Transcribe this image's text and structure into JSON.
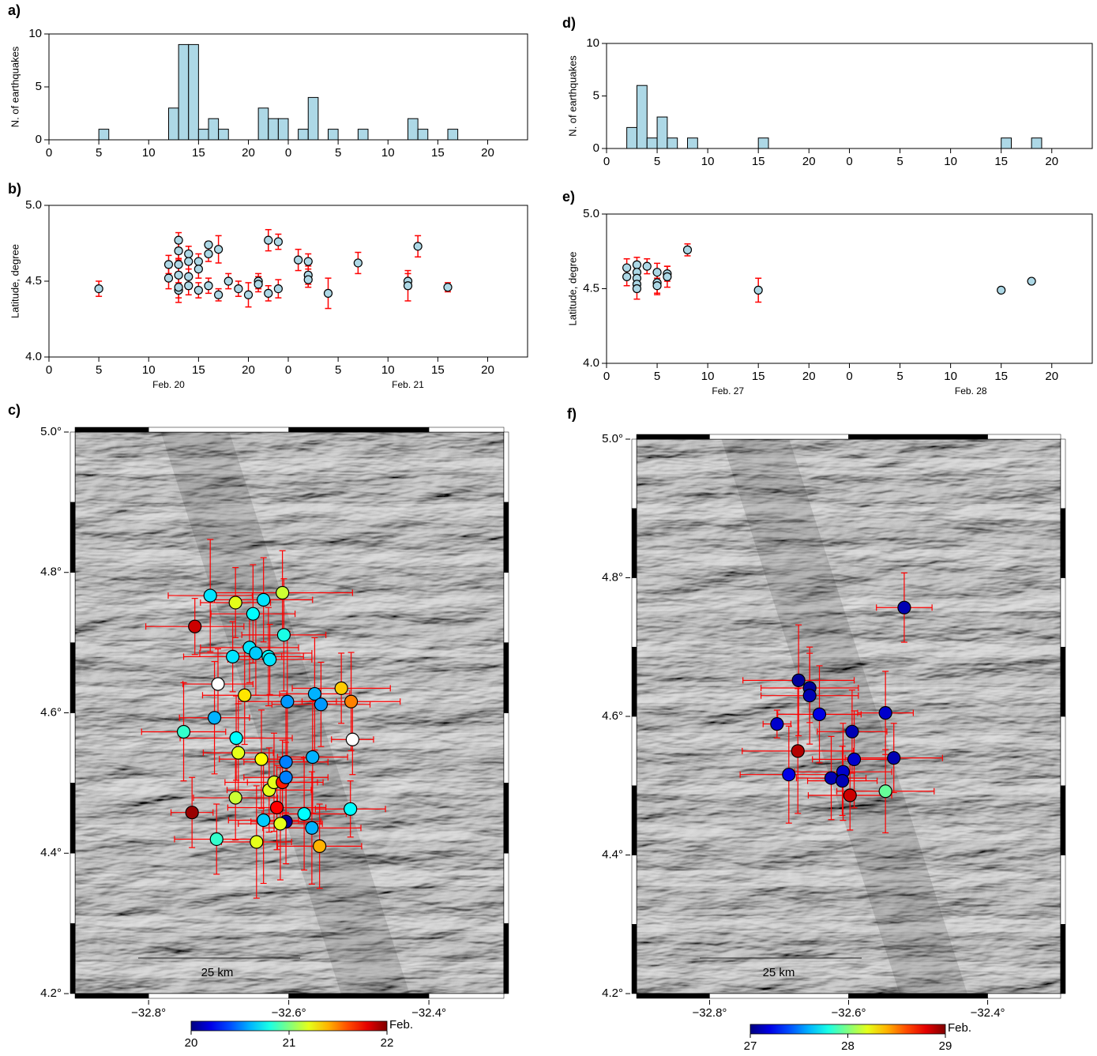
{
  "chart_data": [
    {
      "type": "histogram",
      "panel": "a)",
      "ylabel": "N. of earthquakes",
      "bins": [
        0,
        1,
        2,
        3,
        4,
        5,
        6,
        7,
        8,
        9,
        10,
        11,
        12,
        13,
        14,
        15,
        16,
        17,
        18,
        19,
        20,
        21,
        22,
        23,
        24,
        25,
        26,
        27,
        28,
        29,
        30,
        31,
        32,
        33,
        34,
        35,
        36,
        37,
        38,
        39,
        40,
        41,
        42,
        43,
        44,
        45,
        46,
        47,
        48
      ],
      "counts": [
        0,
        0,
        0,
        0,
        0,
        1,
        0,
        0,
        0,
        0,
        0,
        0,
        3,
        9,
        9,
        1,
        2,
        1,
        0,
        0,
        0,
        3,
        2,
        2,
        0,
        1,
        4,
        0,
        1,
        0,
        0,
        1,
        0,
        0,
        0,
        0,
        2,
        1,
        0,
        0,
        1,
        0,
        0,
        0,
        0,
        0,
        0,
        0
      ],
      "color": "#add8e6",
      "xlim": [
        0,
        48
      ],
      "xticks": [
        0,
        5,
        10,
        15,
        20,
        {
          "value": 24,
          "label": "0"
        },
        {
          "value": 29,
          "label": "5"
        },
        {
          "value": 34,
          "label": "10"
        },
        {
          "value": 39,
          "label": "15"
        },
        {
          "value": 44,
          "label": "20"
        }
      ],
      "ylim": [
        0,
        10
      ],
      "yticks": [
        0,
        5,
        10
      ]
    },
    {
      "type": "scatter",
      "panel": "b)",
      "ylabel": "Latitude, degree",
      "x": [
        5,
        12,
        12,
        13,
        13,
        13,
        13,
        13,
        13,
        14,
        14,
        14,
        14,
        15,
        15,
        15,
        16,
        16,
        16,
        17,
        17,
        18,
        19,
        20,
        21,
        21,
        22,
        22,
        23,
        23,
        25,
        26,
        26,
        26,
        28,
        31,
        36,
        36,
        37,
        40
      ],
      "y": [
        4.45,
        4.61,
        4.52,
        4.77,
        4.7,
        4.61,
        4.54,
        4.44,
        4.46,
        4.68,
        4.63,
        4.53,
        4.47,
        4.63,
        4.58,
        4.44,
        4.74,
        4.68,
        4.47,
        4.71,
        4.41,
        4.5,
        4.45,
        4.41,
        4.5,
        4.48,
        4.77,
        4.42,
        4.76,
        4.45,
        4.64,
        4.63,
        4.54,
        4.51,
        4.42,
        4.62,
        4.5,
        4.47,
        4.73,
        4.46
      ],
      "y_err": [
        0.05,
        0.06,
        0.07,
        0.05,
        0.05,
        0.07,
        0.1,
        0.05,
        0.1,
        0.05,
        0.05,
        0.08,
        0.06,
        0.05,
        0.06,
        0.05,
        0.02,
        0.05,
        0.05,
        0.09,
        0.04,
        0.05,
        0.05,
        0.08,
        0.05,
        0.05,
        0.07,
        0.05,
        0.05,
        0.06,
        0.07,
        0.05,
        0.06,
        0.05,
        0.1,
        0.07,
        0.05,
        0.1,
        0.07,
        0.03
      ],
      "color": "#add8e6",
      "error_color": "#ff0000",
      "xlim": [
        0,
        48
      ],
      "xticks": [
        0,
        5,
        10,
        15,
        20,
        {
          "value": 24,
          "label": "0"
        },
        {
          "value": 29,
          "label": "5"
        },
        {
          "value": 34,
          "label": "10"
        },
        {
          "value": 39,
          "label": "15"
        },
        {
          "value": 44,
          "label": "20"
        }
      ],
      "ylim": [
        4.0,
        5.0
      ],
      "yticks": [
        {
          "value": 4.0,
          "label": "4.0"
        },
        4.5,
        {
          "value": 5.0,
          "label": "5.0"
        }
      ],
      "day_labels": [
        "Feb. 20",
        "Feb. 21"
      ]
    },
    {
      "type": "map",
      "panel": "c)",
      "x": [
        -32.712,
        -32.734,
        -32.676,
        -32.636,
        -32.609,
        -32.651,
        -32.607,
        -32.656,
        -32.647,
        -32.629,
        -32.627,
        -32.68,
        -32.701,
        -32.663,
        -32.602,
        -32.563,
        -32.554,
        -32.525,
        -32.511,
        -32.706,
        -32.75,
        -32.675,
        -32.509,
        -32.672,
        -32.639,
        -32.604,
        -32.566,
        -32.628,
        -32.621,
        -32.609,
        -32.604,
        -32.676,
        -32.738,
        -32.617,
        -32.578,
        -32.512,
        -32.636,
        -32.604,
        -32.612,
        -32.567,
        -32.703,
        -32.646,
        -32.556
      ],
      "y": [
        4.767,
        4.723,
        4.757,
        4.761,
        4.771,
        4.741,
        4.711,
        4.693,
        4.685,
        4.68,
        4.676,
        4.68,
        4.641,
        4.625,
        4.616,
        4.627,
        4.612,
        4.635,
        4.616,
        4.593,
        4.573,
        4.564,
        4.562,
        4.543,
        4.534,
        4.53,
        4.537,
        4.49,
        4.501,
        4.501,
        4.508,
        4.479,
        4.458,
        4.465,
        4.456,
        4.463,
        4.447,
        4.445,
        4.442,
        4.436,
        4.42,
        4.416,
        4.41
      ],
      "color_values": [
        20.7,
        21.85,
        21.2,
        20.7,
        21.15,
        20.75,
        20.8,
        20.7,
        20.65,
        20.75,
        20.7,
        20.7,
        22.3,
        21.3,
        20.55,
        20.6,
        20.55,
        21.35,
        21.5,
        20.6,
        20.85,
        20.75,
        22.3,
        21.2,
        21.25,
        20.5,
        20.6,
        21.2,
        21.2,
        21.7,
        20.5,
        21.15,
        21.95,
        21.75,
        20.75,
        20.75,
        20.65,
        20.05,
        21.2,
        20.6,
        20.85,
        21.2,
        21.4
      ],
      "x_err": [
        0.06,
        0.07,
        0.05,
        0.07,
        0.1,
        0.06,
        0.06,
        0.07,
        0.08,
        0.05,
        0.06,
        0.07,
        0.05,
        0.06,
        0.07,
        0.05,
        0.07,
        0.07,
        0.07,
        0.05,
        0.06,
        0.08,
        0.03,
        0.05,
        0.06,
        0.06,
        0.05,
        0.06,
        0.07,
        0.05,
        0.06,
        0.06,
        0.03,
        0.07,
        0.06,
        0.05,
        0.05,
        0.05,
        0.06,
        0.07,
        0.06,
        0.05,
        0.06
      ],
      "y_err": [
        0.08,
        0.04,
        0.05,
        0.06,
        0.06,
        0.07,
        0.08,
        0.05,
        0.06,
        0.07,
        0.05,
        0.05,
        0.05,
        0.07,
        0.1,
        0.08,
        0.06,
        0.05,
        0.07,
        0.08,
        0.07,
        0.06,
        0.05,
        0.07,
        0.07,
        0.09,
        0.08,
        0.06,
        0.07,
        0.06,
        0.05,
        0.06,
        0.05,
        0.06,
        0.08,
        0.04,
        0.09,
        0.06,
        0.08,
        0.08,
        0.05,
        0.08,
        0.06
      ],
      "colormap": "jet",
      "clim": [
        20,
        22
      ],
      "cticks": [
        20,
        21,
        22
      ],
      "colorbar_label": "Feb.",
      "error_color": "#ff0000",
      "scale_label": "25 km",
      "xlim": [
        -32.905,
        -32.293
      ],
      "xticks": [
        {
          "value": -32.8,
          "label": "−32.8°"
        },
        {
          "value": -32.6,
          "label": "−32.6°"
        },
        {
          "value": -32.4,
          "label": "−32.4°"
        }
      ],
      "ylim": [
        4.2,
        5.0
      ],
      "yticks": [
        {
          "value": 4.2,
          "label": "4.2°"
        },
        {
          "value": 4.4,
          "label": "4.4°"
        },
        {
          "value": 4.6,
          "label": "4.6°"
        },
        {
          "value": 4.8,
          "label": "4.8°"
        },
        {
          "value": 5.0,
          "label": "5.0°"
        }
      ]
    },
    {
      "type": "histogram",
      "panel": "d)",
      "ylabel": "N. of earthquakes",
      "bins": [
        0,
        1,
        2,
        3,
        4,
        5,
        6,
        7,
        8,
        9,
        10,
        11,
        12,
        13,
        14,
        15,
        16,
        17,
        18,
        19,
        20,
        21,
        22,
        23,
        24,
        25,
        26,
        27,
        28,
        29,
        30,
        31,
        32,
        33,
        34,
        35,
        36,
        37,
        38,
        39,
        40,
        41,
        42,
        43,
        44,
        45,
        46,
        47,
        48
      ],
      "counts": [
        0,
        0,
        2,
        6,
        1,
        3,
        1,
        0,
        1,
        0,
        0,
        0,
        0,
        0,
        0,
        1,
        0,
        0,
        0,
        0,
        0,
        0,
        0,
        0,
        0,
        0,
        0,
        0,
        0,
        0,
        0,
        0,
        0,
        0,
        0,
        0,
        0,
        0,
        0,
        1,
        0,
        0,
        1,
        0,
        0,
        0,
        0,
        0
      ],
      "color": "#add8e6",
      "xlim": [
        0,
        48
      ],
      "xticks": [
        0,
        5,
        10,
        15,
        20,
        {
          "value": 24,
          "label": "0"
        },
        {
          "value": 29,
          "label": "5"
        },
        {
          "value": 34,
          "label": "10"
        },
        {
          "value": 39,
          "label": "15"
        },
        {
          "value": 44,
          "label": "20"
        }
      ],
      "ylim": [
        0,
        10
      ],
      "yticks": [
        0,
        5,
        10
      ]
    },
    {
      "type": "scatter",
      "panel": "e)",
      "ylabel": "Latitude, degree",
      "x": [
        2,
        2,
        3,
        3,
        3,
        3,
        3,
        4,
        5,
        5,
        5,
        6,
        6,
        8,
        15,
        39,
        42
      ],
      "y": [
        4.64,
        4.58,
        4.66,
        4.61,
        4.57,
        4.53,
        4.5,
        4.65,
        4.61,
        4.54,
        4.52,
        4.6,
        4.58,
        4.76,
        4.49,
        4.49,
        4.55
      ],
      "y_err": [
        0.06,
        0.06,
        0.05,
        0.05,
        0.07,
        0.05,
        0.07,
        0.05,
        0.06,
        0.08,
        0.05,
        0.05,
        0.07,
        0.04,
        0.08,
        0,
        0
      ],
      "color": "#add8e6",
      "error_color": "#ff0000",
      "xlim": [
        0,
        48
      ],
      "xticks": [
        0,
        5,
        10,
        15,
        20,
        {
          "value": 24,
          "label": "0"
        },
        {
          "value": 29,
          "label": "5"
        },
        {
          "value": 34,
          "label": "10"
        },
        {
          "value": 39,
          "label": "15"
        },
        {
          "value": 44,
          "label": "20"
        }
      ],
      "ylim": [
        4.0,
        5.0
      ],
      "yticks": [
        {
          "value": 4.0,
          "label": "4.0"
        },
        4.5,
        {
          "value": 5.0,
          "label": "5.0"
        }
      ],
      "day_labels": [
        "Feb. 27",
        "Feb. 28"
      ]
    },
    {
      "type": "map",
      "panel": "f)",
      "x": [
        -32.52,
        -32.672,
        -32.656,
        -32.656,
        -32.703,
        -32.642,
        -32.547,
        -32.595,
        -32.673,
        -32.592,
        -32.535,
        -32.608,
        -32.625,
        -32.609,
        -32.686,
        -32.598,
        -32.547
      ],
      "y": [
        4.757,
        4.652,
        4.641,
        4.63,
        4.589,
        4.603,
        4.605,
        4.578,
        4.55,
        4.538,
        4.54,
        4.52,
        4.511,
        4.507,
        4.516,
        4.486,
        4.492
      ],
      "color_values": [
        27.1,
        27.05,
        27.05,
        27.1,
        27.15,
        27.2,
        27.15,
        27.1,
        28.9,
        27.15,
        27.1,
        27.15,
        27.1,
        27.1,
        27.2,
        28.85,
        27.95
      ],
      "x_err": [
        0.04,
        0.08,
        0.07,
        0.07,
        0.02,
        0.06,
        0.04,
        0.05,
        0.08,
        0.06,
        0.07,
        0.07,
        0.05,
        0.05,
        0.07,
        0.06,
        0.07
      ],
      "y_err": [
        0.05,
        0.08,
        0.05,
        0.07,
        0.02,
        0.07,
        0.06,
        0.06,
        0.09,
        0.07,
        0.05,
        0.07,
        0.06,
        0.05,
        0.07,
        0.05,
        0.06
      ],
      "colormap": "jet",
      "clim": [
        27,
        29
      ],
      "cticks": [
        27,
        28,
        29
      ],
      "colorbar_label": "Feb.",
      "error_color": "#ff0000",
      "scale_label": "25 km",
      "xlim": [
        -32.905,
        -32.295
      ],
      "xticks": [
        {
          "value": -32.8,
          "label": "−32.8°"
        },
        {
          "value": -32.6,
          "label": "−32.6°"
        },
        {
          "value": -32.4,
          "label": "−32.4°"
        }
      ],
      "ylim": [
        4.2,
        5.0
      ],
      "yticks": [
        {
          "value": 4.2,
          "label": "4.2°"
        },
        {
          "value": 4.4,
          "label": "4.4°"
        },
        {
          "value": 4.6,
          "label": "4.6°"
        },
        {
          "value": 4.8,
          "label": "4.8°"
        },
        {
          "value": 5.0,
          "label": "5.0°"
        }
      ]
    }
  ]
}
